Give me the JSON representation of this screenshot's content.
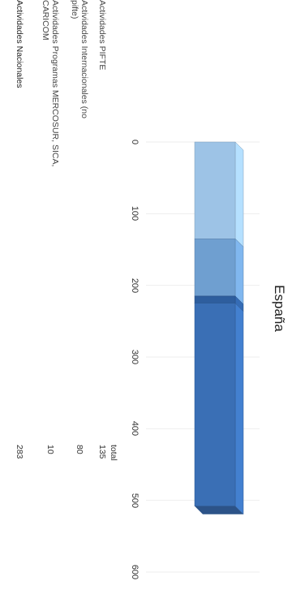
{
  "chart_data": {
    "type": "bar",
    "title": "España",
    "categories": [
      "total"
    ],
    "xlim": [
      0,
      600
    ],
    "ticks": [
      0,
      100,
      200,
      300,
      400,
      500,
      600
    ],
    "stacked": true,
    "series": [
      {
        "name": "Actividades PIFTE",
        "values": [
          135
        ],
        "color": "#9dc3e6"
      },
      {
        "name": "Actividades Internacionales (no pifte)",
        "values": [
          80
        ],
        "color": "#6f9fd0"
      },
      {
        "name": "Actividades Programas MERCOSUR, SICA, CARICOM",
        "values": [
          10
        ],
        "color": "#2e5e9e"
      },
      {
        "name": "Actividades Nacionales",
        "values": [
          283
        ],
        "color": "#3a6fb5"
      }
    ],
    "table_header": "total",
    "grid": true,
    "orientation": "horizontal-rotated"
  }
}
